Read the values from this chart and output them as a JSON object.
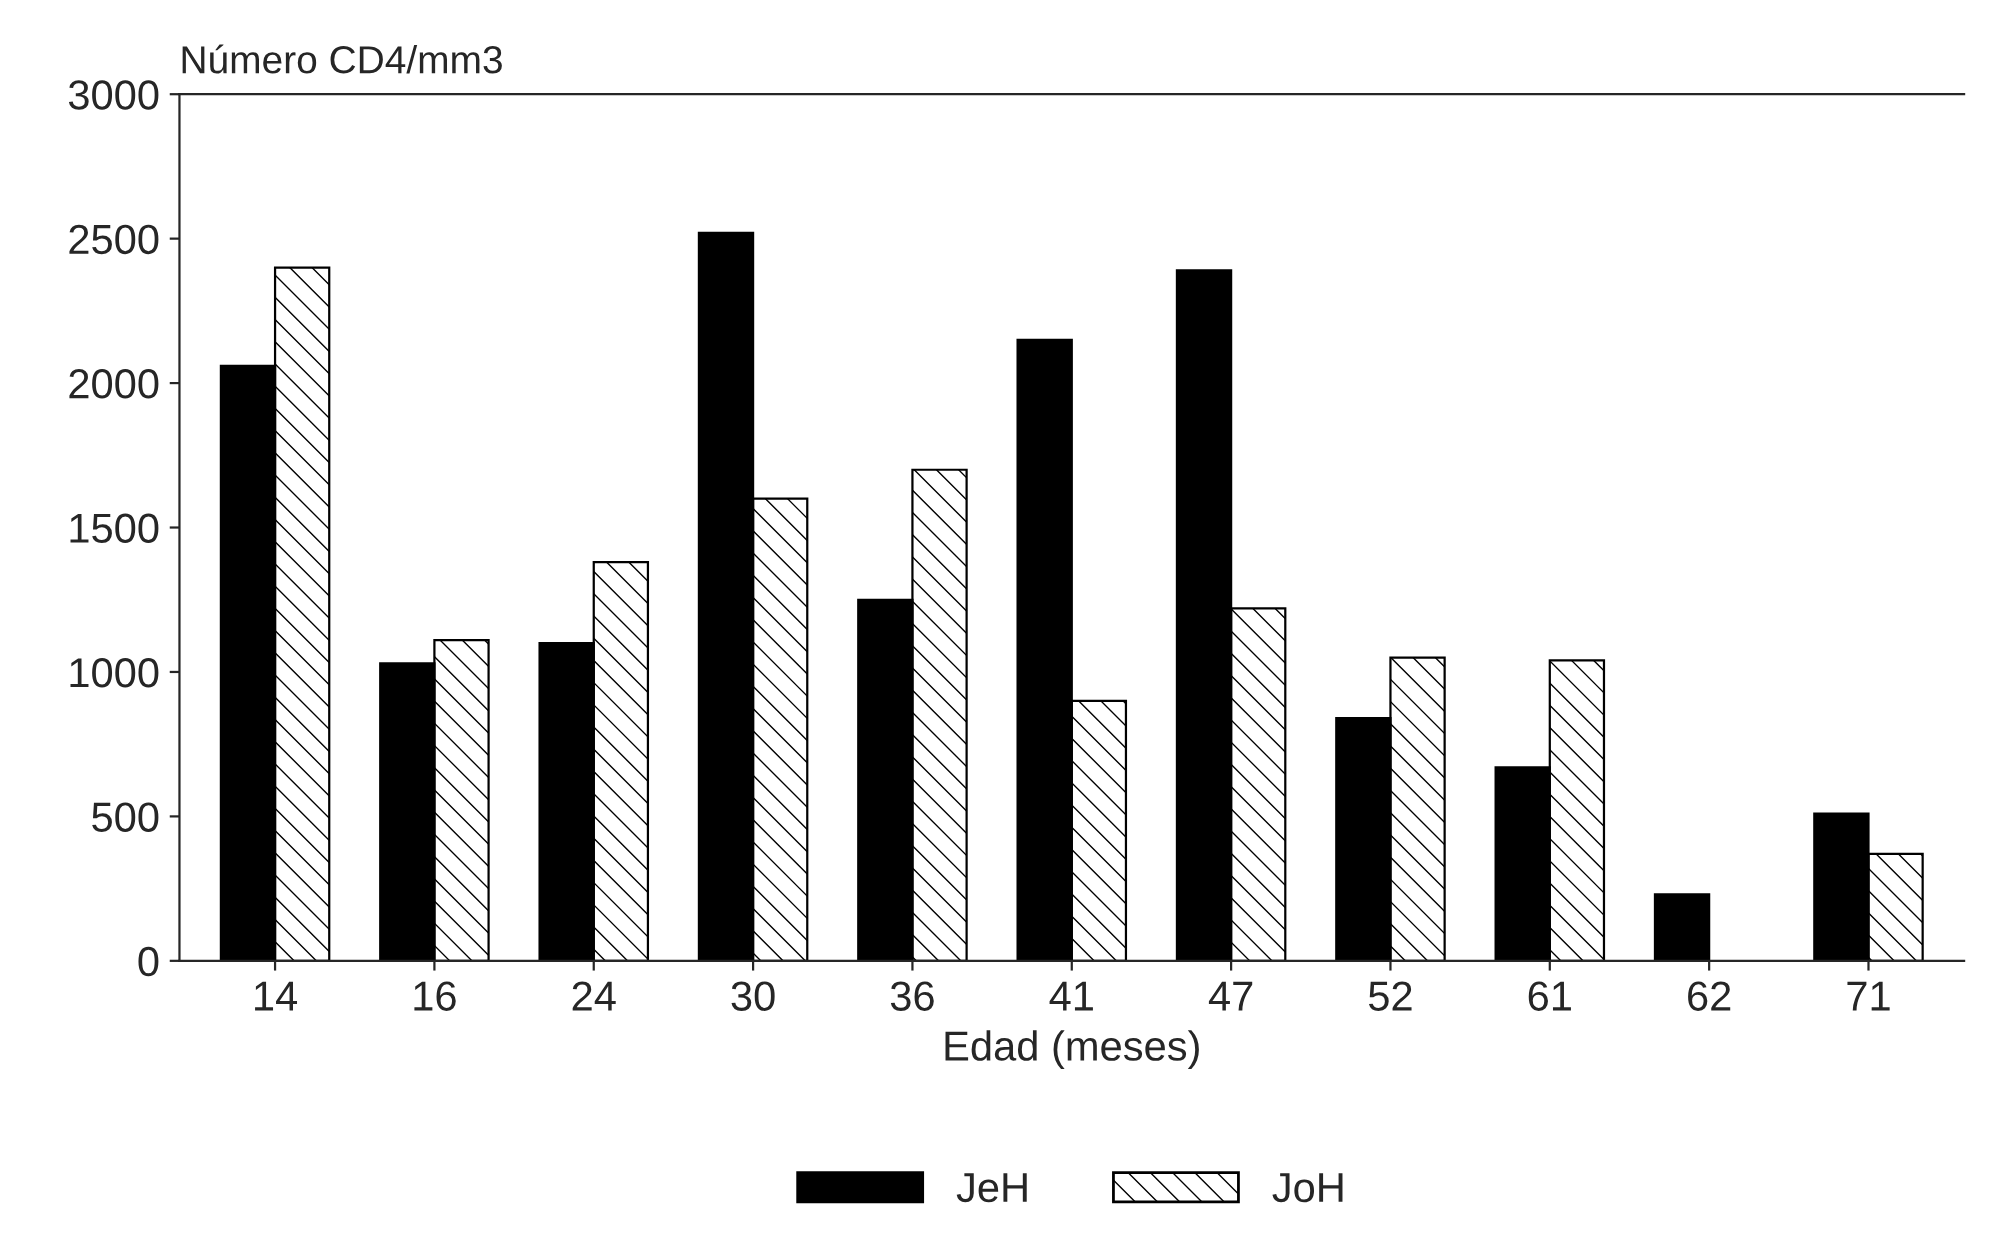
{
  "chart_data": {
    "type": "bar",
    "ylabel": "Número CD4/mm3",
    "xlabel": "Edad (meses)",
    "categories": [
      "14",
      "16",
      "24",
      "30",
      "36",
      "41",
      "47",
      "52",
      "61",
      "62",
      "71"
    ],
    "series": [
      {
        "name": "JeH",
        "color": "#000000",
        "values": [
          2060,
          1030,
          1100,
          2520,
          1250,
          2150,
          2390,
          840,
          670,
          230,
          510
        ]
      },
      {
        "name": "JoH",
        "color": "#000000",
        "values": [
          2400,
          1110,
          1380,
          1600,
          1700,
          900,
          1220,
          1050,
          1040,
          null,
          370
        ]
      }
    ],
    "ylim": [
      0,
      3000
    ],
    "yticks": [
      0,
      500,
      1000,
      1500,
      2000,
      2500,
      3000
    ],
    "grid": false,
    "legend": "bottom"
  }
}
